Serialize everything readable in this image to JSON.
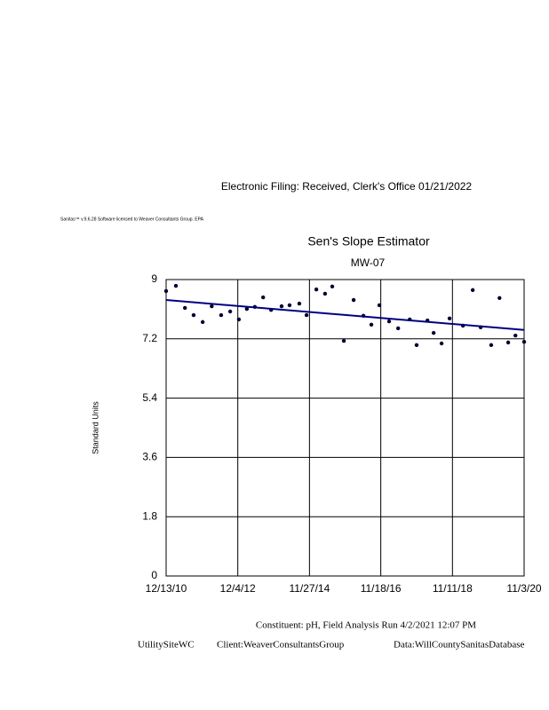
{
  "header": {
    "filing": "Electronic    Filing:    Received,    Clerk's   Office   01/21/2022",
    "software": "Sanitas™   v.9.6.28   Software   licensed   to   Weaver   Consultants   Group.   EPA"
  },
  "chart_data": {
    "type": "scatter",
    "title": "Sen's Slope Estimator",
    "subtitle": "MW-07",
    "y_label": "Standard Units",
    "x": [
      2010.95,
      2011.22,
      2011.47,
      2011.71,
      2011.96,
      2012.21,
      2012.47,
      2012.72,
      2012.96,
      2013.18,
      2013.4,
      2013.63,
      2013.85,
      2014.14,
      2014.36,
      2014.63,
      2014.83,
      2015.1,
      2015.34,
      2015.54,
      2015.86,
      2016.13,
      2016.4,
      2016.62,
      2016.84,
      2017.11,
      2017.36,
      2017.68,
      2017.87,
      2018.17,
      2018.34,
      2018.56,
      2018.78,
      2019.15,
      2019.42,
      2019.64,
      2019.93,
      2020.16,
      2020.4,
      2020.6,
      2020.84
    ],
    "values": [
      8.65,
      8.81,
      8.14,
      7.92,
      7.71,
      8.19,
      7.92,
      8.03,
      7.79,
      8.11,
      8.17,
      8.46,
      8.08,
      8.19,
      8.22,
      8.27,
      7.92,
      8.7,
      8.57,
      8.79,
      7.14,
      8.38,
      7.9,
      7.63,
      8.22,
      7.73,
      7.52,
      7.79,
      7.01,
      7.76,
      7.38,
      7.06,
      7.82,
      7.6,
      8.68,
      7.55,
      7.01,
      8.44,
      7.09,
      7.3,
      7.11
    ],
    "color": "#000033",
    "trend": {
      "x": [
        2010.95,
        2020.84
      ],
      "values": [
        8.38,
        7.47
      ],
      "color": "#000080"
    },
    "xlim": [
      2010.95,
      2020.84
    ],
    "xticks": [
      {
        "value": 2010.95,
        "label": "12/13/10"
      },
      {
        "value": 2012.93,
        "label": "12/4/12"
      },
      {
        "value": 2014.91,
        "label": "11/27/14"
      },
      {
        "value": 2016.88,
        "label": "11/18/16"
      },
      {
        "value": 2018.86,
        "label": "11/11/18"
      },
      {
        "value": 2020.84,
        "label": "11/3/20"
      }
    ],
    "ylim": [
      0,
      9
    ],
    "yticks": [
      0,
      1.8,
      3.6,
      5.4,
      7.2,
      9
    ],
    "grid": true
  },
  "footer": {
    "constituent": "Constituent:     pH,   Field     Analysis    Run    4/2/2021      12:07     PM",
    "site": "UtilitySiteWC",
    "client": "Client:WeaverConsultantsGroup",
    "data": "Data:WillCountySanitasDatabase"
  }
}
